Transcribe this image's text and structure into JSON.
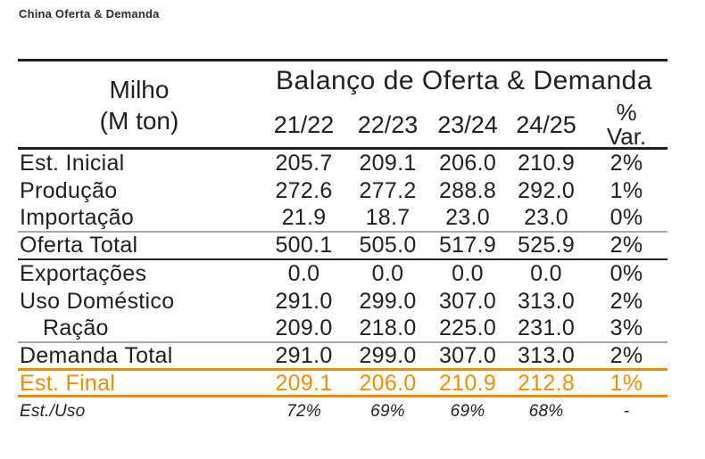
{
  "page_title": "China Oferta & Demanda",
  "table": {
    "title": "Balanço de Oferta & Demanda",
    "commodity": "Milho",
    "unit": "(M ton)",
    "year_columns": [
      "21/22",
      "22/23",
      "23/24",
      "24/25"
    ],
    "var_header_line1": "%",
    "var_header_line2": "Var.",
    "rows": [
      {
        "label": "Est. Inicial",
        "values": [
          "205.7",
          "209.1",
          "206.0",
          "210.9"
        ],
        "var": "2%"
      },
      {
        "label": "Produção",
        "values": [
          "272.6",
          "277.2",
          "288.8",
          "292.0"
        ],
        "var": "1%"
      },
      {
        "label": "Importação",
        "values": [
          "21.9",
          "18.7",
          "23.0",
          "23.0"
        ],
        "var": "0%"
      },
      {
        "label": "Oferta Total",
        "values": [
          "500.1",
          "505.0",
          "517.9",
          "525.9"
        ],
        "var": "2%"
      },
      {
        "label": "Exportações",
        "values": [
          "0.0",
          "0.0",
          "0.0",
          "0.0"
        ],
        "var": "0%"
      },
      {
        "label": "Uso Doméstico",
        "values": [
          "291.0",
          "299.0",
          "307.0",
          "313.0"
        ],
        "var": "2%"
      },
      {
        "label": "Ração",
        "values": [
          "209.0",
          "218.0",
          "225.0",
          "231.0"
        ],
        "var": "3%"
      },
      {
        "label": "Demanda Total",
        "values": [
          "291.0",
          "299.0",
          "307.0",
          "313.0"
        ],
        "var": "2%"
      },
      {
        "label": "Est. Final",
        "values": [
          "209.1",
          "206.0",
          "210.9",
          "212.8"
        ],
        "var": "1%"
      },
      {
        "label": "Est./Uso",
        "values": [
          "72%",
          "69%",
          "69%",
          "68%"
        ],
        "var": "-"
      }
    ]
  },
  "colors": {
    "accent_orange": "#ee8f00",
    "text_dark": "#1f1f1f",
    "divider_gray": "#a8a8a8"
  },
  "chart_data": {
    "type": "table",
    "title": "Balanço de Oferta & Demanda",
    "subtitle": "China Oferta & Demanda",
    "row_header": "Milho (M ton)",
    "columns": [
      "21/22",
      "22/23",
      "23/24",
      "24/25",
      "% Var."
    ],
    "series": [
      {
        "name": "Est. Inicial",
        "values": [
          205.7,
          209.1,
          206.0,
          210.9
        ],
        "var": "2%"
      },
      {
        "name": "Produção",
        "values": [
          272.6,
          277.2,
          288.8,
          292.0
        ],
        "var": "1%"
      },
      {
        "name": "Importação",
        "values": [
          21.9,
          18.7,
          23.0,
          23.0
        ],
        "var": "0%"
      },
      {
        "name": "Oferta Total",
        "values": [
          500.1,
          505.0,
          517.9,
          525.9
        ],
        "var": "2%"
      },
      {
        "name": "Exportações",
        "values": [
          0.0,
          0.0,
          0.0,
          0.0
        ],
        "var": "0%"
      },
      {
        "name": "Uso Doméstico",
        "values": [
          291.0,
          299.0,
          307.0,
          313.0
        ],
        "var": "2%"
      },
      {
        "name": "Ração",
        "values": [
          209.0,
          218.0,
          225.0,
          231.0
        ],
        "var": "3%"
      },
      {
        "name": "Demanda Total",
        "values": [
          291.0,
          299.0,
          307.0,
          313.0
        ],
        "var": "2%"
      },
      {
        "name": "Est. Final",
        "values": [
          209.1,
          206.0,
          210.9,
          212.8
        ],
        "var": "1%"
      },
      {
        "name": "Est./Uso",
        "values": [
          "72%",
          "69%",
          "69%",
          "68%"
        ],
        "var": "-"
      }
    ]
  }
}
